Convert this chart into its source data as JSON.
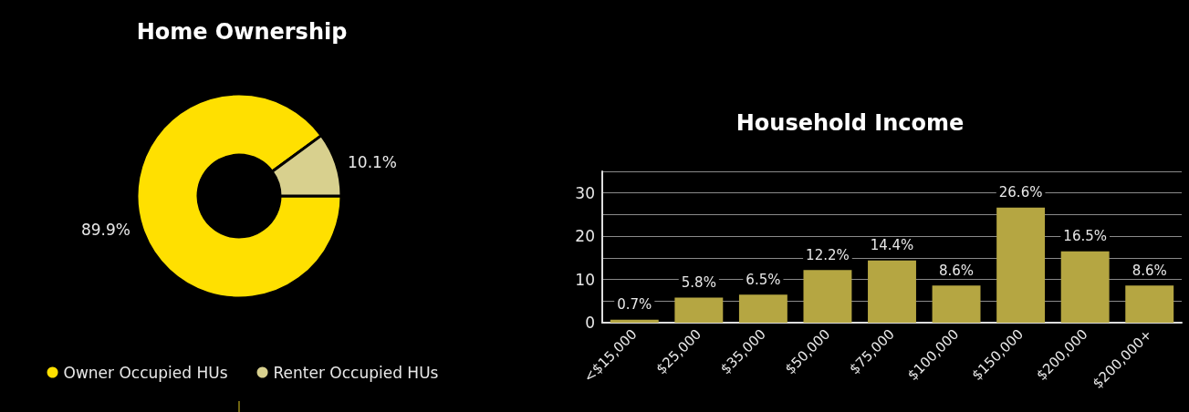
{
  "chart_data": [
    {
      "type": "donut",
      "title": "Home Ownership",
      "categories": [
        "Owner Occupied HUs",
        "Renter Occupied HUs"
      ],
      "values": [
        89.9,
        10.1
      ],
      "value_labels": [
        "89.9%",
        "10.1%"
      ],
      "colors": [
        "#ffe000",
        "#d8d08e"
      ],
      "legend": "bottom"
    },
    {
      "type": "bar",
      "title": "Household Income",
      "categories": [
        "<$15,000",
        "$25,000",
        "$35,000",
        "$50,000",
        "$75,000",
        "$100,000",
        "$150,000",
        "$200,000",
        "$200,000+"
      ],
      "values": [
        0.7,
        5.8,
        6.5,
        12.2,
        14.4,
        8.6,
        26.6,
        16.5,
        8.6
      ],
      "value_labels": [
        "0.7%",
        "5.8%",
        "6.5%",
        "12.2%",
        "14.4%",
        "8.6%",
        "26.6%",
        "16.5%",
        "8.6%"
      ],
      "color": "#b5a642",
      "ylim": [
        0,
        35
      ],
      "yticks": [
        0,
        {
          "value": 5,
          "label": null
        },
        10,
        {
          "value": 15,
          "label": null
        },
        20,
        {
          "value": 25,
          "label": null
        },
        30,
        {
          "value": 35,
          "label": null
        }
      ],
      "grid": "y",
      "legend": false
    }
  ]
}
